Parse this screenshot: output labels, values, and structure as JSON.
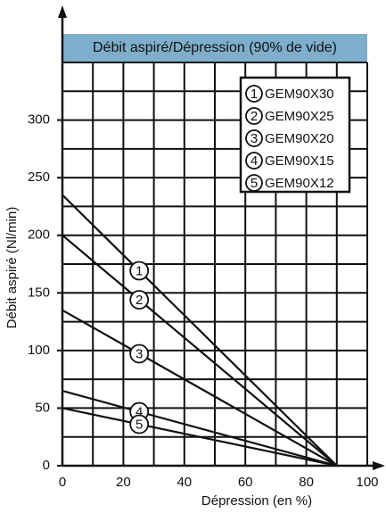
{
  "chart_data": {
    "type": "line",
    "title": "Débit aspiré/Dépression (90% de vide)",
    "x_label": "Dépression (en %)",
    "y_label": "Débit aspiré (Nl/min)",
    "x": [
      0,
      90
    ],
    "series": [
      {
        "name": "GEM90X30",
        "label": "1",
        "color": "#111111",
        "values": [
          235,
          0
        ]
      },
      {
        "name": "GEM90X25",
        "label": "2",
        "color": "#111111",
        "values": [
          200,
          0
        ]
      },
      {
        "name": "GEM90X20",
        "label": "3",
        "color": "#111111",
        "values": [
          135,
          0
        ]
      },
      {
        "name": "GEM90X15",
        "label": "4",
        "color": "#111111",
        "values": [
          65,
          0
        ]
      },
      {
        "name": "GEM90X12",
        "label": "5",
        "color": "#111111",
        "values": [
          50,
          0
        ]
      }
    ],
    "xlim": [
      0,
      100
    ],
    "ylim": [
      0,
      350
    ],
    "xticks": [
      0,
      20,
      40,
      60,
      80,
      100
    ],
    "yticks": [
      0,
      50,
      100,
      150,
      200,
      250,
      300
    ],
    "minor_xticks": [
      10,
      30,
      50,
      70,
      90
    ],
    "minor_yticks": [
      25,
      75,
      125,
      175,
      225,
      275,
      325,
      350
    ],
    "grid": true,
    "legend": "upper right",
    "title_color": "#7eaecb"
  }
}
